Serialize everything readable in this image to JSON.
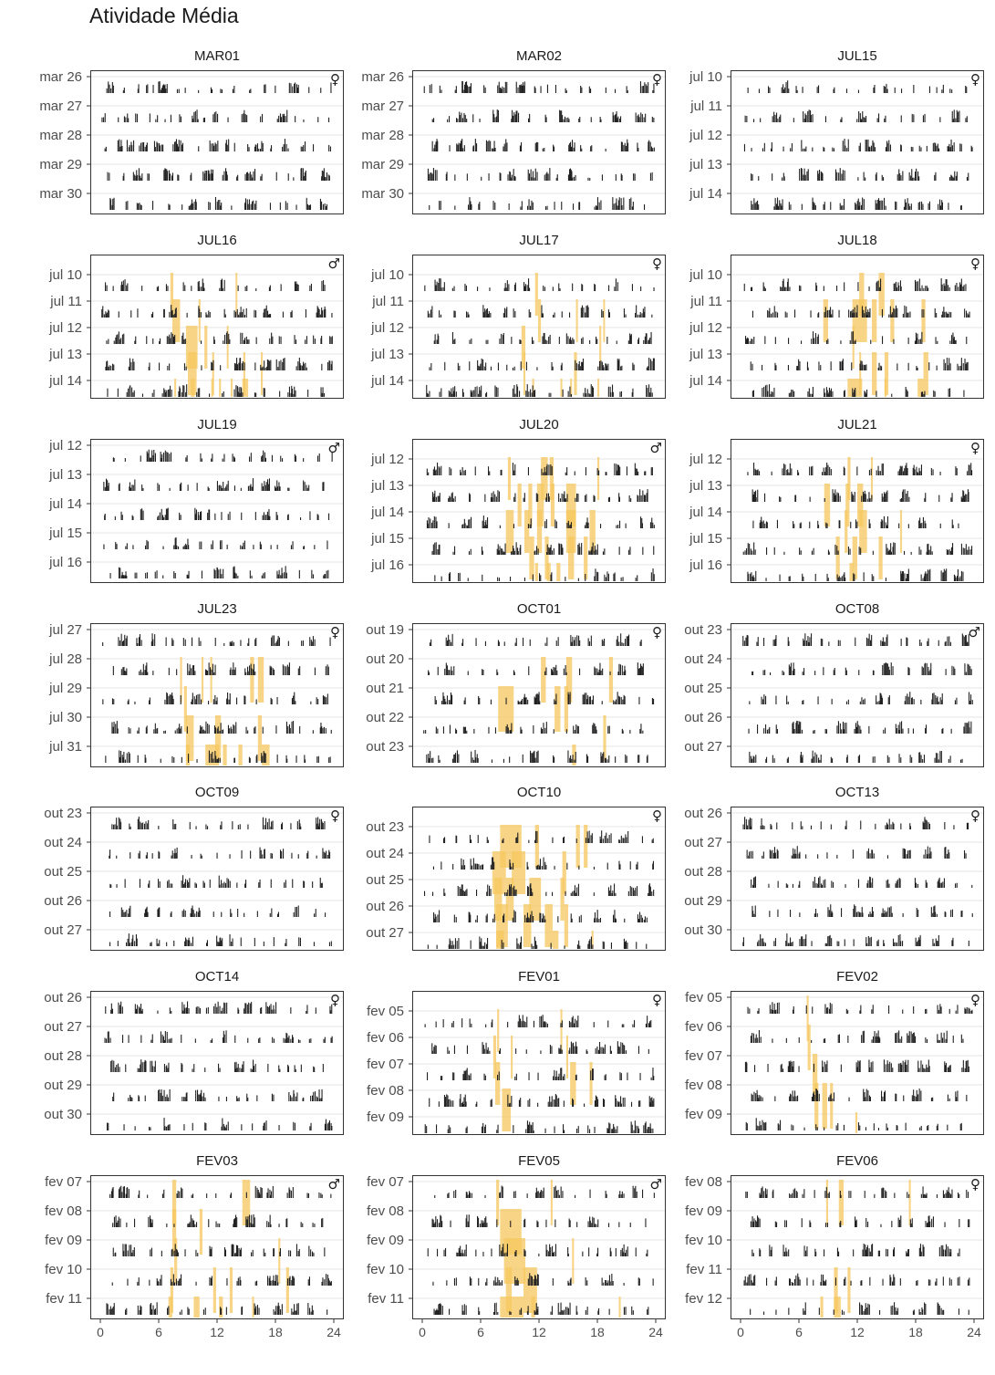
{
  "page_title": "Atividade Média",
  "chart_data": {
    "type": "bar",
    "layout": "faceted actogram, 3 columns × 7 rows",
    "x": {
      "label": "",
      "range": [
        0,
        24
      ],
      "ticks": [
        "0",
        "6",
        "12",
        "18",
        "24"
      ]
    },
    "y": {
      "label": "",
      "note": "one row per day; black bars = activity, orange shading = highlighted intervals"
    },
    "colors": {
      "activity": "#222222",
      "highlight": "#f6c75d",
      "grid": "#ebebeb",
      "border": "#333333"
    },
    "panels": [
      {
        "name": "MAR01",
        "sex": "♀",
        "days": [
          "mar 26",
          "mar 27",
          "mar 28",
          "mar 29",
          "mar 30"
        ],
        "highlights": []
      },
      {
        "name": "MAR02",
        "sex": "♀",
        "days": [
          "mar 26",
          "mar 27",
          "mar 28",
          "mar 29",
          "mar 30"
        ],
        "highlights": []
      },
      {
        "name": "JUL15",
        "sex": "♀",
        "days": [
          "jul 10",
          "jul 11",
          "jul 12",
          "jul 13",
          "jul 14"
        ],
        "highlights": []
      },
      {
        "name": "JUL16",
        "sex": "♂",
        "days": [
          "jul 10",
          "jul 11",
          "jul 12",
          "jul 13",
          "jul 14"
        ],
        "highlights": [
          [
            0,
            7.2,
            7.5
          ],
          [
            0,
            13.9,
            14.0
          ],
          [
            1,
            7.4,
            8.2
          ],
          [
            1,
            10.1,
            10.3
          ],
          [
            2,
            8.8,
            10.0
          ],
          [
            2,
            10.7,
            11.0
          ],
          [
            2,
            13.0,
            13.1
          ],
          [
            3,
            9.0,
            9.9
          ],
          [
            3,
            11.5,
            11.7
          ],
          [
            3,
            14.7,
            14.9
          ],
          [
            3,
            16.5,
            16.7
          ],
          [
            4,
            7.6,
            7.8
          ],
          [
            4,
            9.3,
            9.7
          ],
          [
            4,
            11.4,
            11.6
          ],
          [
            4,
            12.2,
            12.4
          ],
          [
            4,
            13.4,
            13.6
          ],
          [
            4,
            14.6,
            15.2
          ]
        ]
      },
      {
        "name": "JUL17",
        "sex": "♀",
        "days": [
          "jul 10",
          "jul 11",
          "jul 12",
          "jul 13",
          "jul 14"
        ],
        "highlights": [
          [
            0,
            11.6,
            11.9
          ],
          [
            1,
            11.9,
            12.2
          ],
          [
            1,
            15.8,
            16.0
          ],
          [
            1,
            18.6,
            18.7
          ],
          [
            2,
            10.2,
            10.6
          ],
          [
            2,
            18.2,
            18.4
          ],
          [
            3,
            10.4,
            10.6
          ],
          [
            3,
            15.6,
            15.9
          ],
          [
            4,
            11.3,
            11.5
          ],
          [
            4,
            14.2,
            14.4
          ],
          [
            4,
            15.2,
            15.4
          ],
          [
            4,
            18.0,
            18.2
          ]
        ]
      },
      {
        "name": "JUL18",
        "sex": "♀",
        "days": [
          "jul 10",
          "jul 11",
          "jul 12",
          "jul 13",
          "jul 14"
        ],
        "highlights": [
          [
            0,
            12.2,
            12.7
          ],
          [
            0,
            14.2,
            14.8
          ],
          [
            1,
            8.5,
            9.0
          ],
          [
            1,
            11.5,
            13.0
          ],
          [
            1,
            13.5,
            14.0
          ],
          [
            1,
            15.4,
            15.8
          ],
          [
            1,
            18.6,
            19.0
          ],
          [
            2,
            11.5,
            11.7
          ],
          [
            3,
            12.2,
            12.4
          ],
          [
            3,
            13.5,
            14.0
          ],
          [
            3,
            14.8,
            15.2
          ],
          [
            3,
            18.8,
            19.3
          ],
          [
            4,
            11.0,
            12.5
          ],
          [
            4,
            14.8,
            15.0
          ],
          [
            4,
            18.2,
            18.8
          ]
        ]
      },
      {
        "name": "JUL19",
        "sex": "♂",
        "days": [
          "jul 12",
          "jul 13",
          "jul 14",
          "jul 15",
          "jul 16"
        ],
        "highlights": []
      },
      {
        "name": "JUL20",
        "sex": "♂",
        "days": [
          "jul 12",
          "jul 13",
          "jul 14",
          "jul 15",
          "jul 16"
        ],
        "highlights": [
          [
            0,
            8.8,
            9.1
          ],
          [
            0,
            12.2,
            12.9
          ],
          [
            0,
            13.1,
            13.5
          ],
          [
            0,
            18.0,
            18.2
          ],
          [
            1,
            9.8,
            10.2
          ],
          [
            1,
            10.9,
            11.3
          ],
          [
            1,
            11.8,
            12.5
          ],
          [
            1,
            13.2,
            13.6
          ],
          [
            1,
            14.8,
            15.8
          ],
          [
            2,
            8.6,
            9.4
          ],
          [
            2,
            10.5,
            11.0
          ],
          [
            2,
            11.8,
            12.3
          ],
          [
            2,
            14.8,
            15.8
          ],
          [
            2,
            17.2,
            17.8
          ],
          [
            3,
            11.0,
            11.5
          ],
          [
            3,
            12.6,
            13.0
          ],
          [
            3,
            15.0,
            15.6
          ],
          [
            3,
            16.6,
            17.0
          ],
          [
            4,
            11.6,
            11.9
          ],
          [
            4,
            12.8,
            13.2
          ],
          [
            4,
            13.8,
            14.2
          ]
        ]
      },
      {
        "name": "JUL21",
        "sex": "♀",
        "days": [
          "jul 12",
          "jul 13",
          "jul 14",
          "jul 15",
          "jul 16"
        ],
        "highlights": [
          [
            0,
            11.0,
            11.3
          ],
          [
            0,
            13.4,
            13.6
          ],
          [
            1,
            8.6,
            9.2
          ],
          [
            1,
            10.8,
            11.2
          ],
          [
            1,
            12.0,
            12.6
          ],
          [
            2,
            10.7,
            11.0
          ],
          [
            2,
            12.2,
            13.0
          ],
          [
            2,
            16.4,
            16.6
          ],
          [
            3,
            9.8,
            10.2
          ],
          [
            3,
            11.5,
            12.0
          ],
          [
            3,
            14.2,
            14.6
          ],
          [
            4,
            11.2,
            11.6
          ]
        ]
      },
      {
        "name": "JUL23",
        "sex": "♀",
        "days": [
          "jul 27",
          "jul 28",
          "jul 29",
          "jul 30",
          "jul 31"
        ],
        "highlights": [
          [
            1,
            8.2,
            8.4
          ],
          [
            1,
            10.4,
            10.6
          ],
          [
            1,
            11.3,
            11.5
          ],
          [
            1,
            15.4,
            15.8
          ],
          [
            1,
            16.2,
            16.8
          ],
          [
            2,
            8.6,
            8.9
          ],
          [
            3,
            8.8,
            9.6
          ],
          [
            3,
            11.8,
            12.4
          ],
          [
            3,
            16.2,
            16.6
          ],
          [
            4,
            8.8,
            9.2
          ],
          [
            4,
            10.8,
            12.2
          ],
          [
            4,
            12.6,
            13.0
          ],
          [
            4,
            14.2,
            14.6
          ],
          [
            4,
            16.6,
            17.4
          ]
        ]
      },
      {
        "name": "OCT01",
        "sex": "♀",
        "days": [
          "out 19",
          "out 20",
          "out 21",
          "out 22",
          "out 23"
        ],
        "highlights": [
          [
            1,
            12.2,
            12.7
          ],
          [
            1,
            14.8,
            15.4
          ],
          [
            1,
            19.2,
            19.6
          ],
          [
            2,
            7.8,
            9.4
          ],
          [
            2,
            13.6,
            14.2
          ],
          [
            2,
            14.6,
            15.0
          ],
          [
            3,
            18.6,
            18.9
          ],
          [
            4,
            15.4,
            15.8
          ]
        ]
      },
      {
        "name": "OCT08",
        "sex": "♂",
        "days": [
          "out 23",
          "out 24",
          "out 25",
          "out 26",
          "out 27"
        ],
        "highlights": []
      },
      {
        "name": "OCT09",
        "sex": "♀",
        "days": [
          "out 23",
          "out 24",
          "out 25",
          "out 26",
          "out 27"
        ],
        "highlights": []
      },
      {
        "name": "OCT10",
        "sex": "♀",
        "days": [
          "out 23",
          "out 24",
          "out 25",
          "out 26",
          "out 27"
        ],
        "highlights": [
          [
            0,
            8.0,
            10.2
          ],
          [
            0,
            11.6,
            12.0
          ],
          [
            0,
            15.8,
            16.2
          ],
          [
            0,
            16.6,
            17.0
          ],
          [
            1,
            7.2,
            8.6
          ],
          [
            1,
            9.2,
            10.6
          ],
          [
            1,
            14.4,
            14.8
          ],
          [
            2,
            7.4,
            8.2
          ],
          [
            2,
            8.6,
            9.4
          ],
          [
            2,
            11.0,
            12.2
          ],
          [
            2,
            14.2,
            14.6
          ],
          [
            3,
            7.6,
            8.8
          ],
          [
            3,
            10.4,
            11.2
          ],
          [
            3,
            12.6,
            13.4
          ],
          [
            3,
            14.6,
            15.0
          ],
          [
            4,
            7.6,
            8.4
          ],
          [
            4,
            13.4,
            14.0
          ],
          [
            4,
            17.4,
            17.6
          ]
        ]
      },
      {
        "name": "OCT13",
        "sex": "♀",
        "days": [
          "out 26",
          "out 27",
          "out 28",
          "out 29",
          "out 30"
        ],
        "highlights": []
      },
      {
        "name": "OCT14",
        "sex": "♀",
        "days": [
          "out 26",
          "out 27",
          "out 28",
          "out 29",
          "out 30"
        ],
        "highlights": []
      },
      {
        "name": "FEV01",
        "sex": "♀",
        "days": [
          "fev 05",
          "fev 06",
          "fev 07",
          "fev 08",
          "fev 09"
        ],
        "highlights": [
          [
            0,
            7.7,
            7.9
          ],
          [
            0,
            14.2,
            14.4
          ],
          [
            1,
            7.3,
            7.6
          ],
          [
            1,
            9.1,
            9.3
          ],
          [
            1,
            14.8,
            15.0
          ],
          [
            2,
            7.5,
            8.0
          ],
          [
            2,
            15.2,
            15.8
          ],
          [
            2,
            17.2,
            17.5
          ],
          [
            3,
            8.2,
            9.1
          ]
        ]
      },
      {
        "name": "FEV02",
        "sex": "♀",
        "days": [
          "fev 05",
          "fev 06",
          "fev 07",
          "fev 08",
          "fev 09"
        ],
        "highlights": [
          [
            0,
            6.8,
            7.0
          ],
          [
            1,
            6.9,
            7.2
          ],
          [
            2,
            7.4,
            7.9
          ],
          [
            3,
            7.6,
            8.0
          ],
          [
            3,
            8.4,
            8.9
          ],
          [
            3,
            9.2,
            9.5
          ],
          [
            4,
            11.8,
            12.0
          ]
        ]
      },
      {
        "name": "FEV03",
        "sex": "♂",
        "days": [
          "fev 07",
          "fev 08",
          "fev 09",
          "fev 10",
          "fev 11"
        ],
        "highlights": [
          [
            0,
            7.4,
            7.8
          ],
          [
            0,
            14.6,
            15.4
          ],
          [
            1,
            7.4,
            7.8
          ],
          [
            1,
            10.2,
            10.5
          ],
          [
            2,
            7.6,
            7.9
          ],
          [
            2,
            18.3,
            18.5
          ],
          [
            3,
            7.2,
            7.5
          ],
          [
            3,
            11.6,
            11.9
          ],
          [
            3,
            13.3,
            13.6
          ],
          [
            3,
            19.1,
            19.4
          ],
          [
            4,
            7.0,
            7.4
          ],
          [
            4,
            9.6,
            10.2
          ],
          [
            4,
            12.2,
            12.6
          ],
          [
            4,
            15.6,
            15.8
          ]
        ]
      },
      {
        "name": "FEV05",
        "sex": "♂",
        "days": [
          "fev 07",
          "fev 08",
          "fev 09",
          "fev 10",
          "fev 11"
        ],
        "highlights": [
          [
            0,
            7.6,
            7.9
          ],
          [
            0,
            13.2,
            13.4
          ],
          [
            1,
            8.0,
            10.2
          ],
          [
            2,
            8.4,
            10.6
          ],
          [
            2,
            15.4,
            15.6
          ],
          [
            3,
            8.6,
            9.2
          ],
          [
            3,
            10.4,
            11.8
          ],
          [
            4,
            8.0,
            10.4
          ],
          [
            4,
            11.2,
            11.6
          ],
          [
            4,
            20.2,
            20.4
          ]
        ]
      },
      {
        "name": "FEV06",
        "sex": "♀",
        "days": [
          "fev 08",
          "fev 09",
          "fev 10",
          "fev 11",
          "fev 12"
        ],
        "highlights": [
          [
            0,
            8.8,
            9.0
          ],
          [
            0,
            10.1,
            10.6
          ],
          [
            0,
            17.3,
            17.5
          ],
          [
            3,
            9.6,
            10.0
          ],
          [
            3,
            11.0,
            11.3
          ],
          [
            4,
            8.2,
            8.5
          ],
          [
            4,
            9.6,
            10.3
          ]
        ]
      }
    ]
  }
}
